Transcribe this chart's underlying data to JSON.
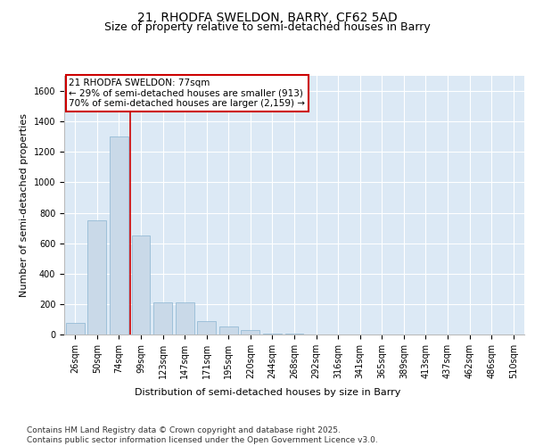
{
  "title_line1": "21, RHODFA SWELDON, BARRY, CF62 5AD",
  "title_line2": "Size of property relative to semi-detached houses in Barry",
  "xlabel": "Distribution of semi-detached houses by size in Barry",
  "ylabel": "Number of semi-detached properties",
  "categories": [
    "26sqm",
    "50sqm",
    "74sqm",
    "99sqm",
    "123sqm",
    "147sqm",
    "171sqm",
    "195sqm",
    "220sqm",
    "244sqm",
    "268sqm",
    "292sqm",
    "316sqm",
    "341sqm",
    "365sqm",
    "389sqm",
    "413sqm",
    "437sqm",
    "462sqm",
    "486sqm",
    "510sqm"
  ],
  "values": [
    75,
    750,
    1300,
    650,
    210,
    210,
    90,
    55,
    30,
    8,
    3,
    2,
    1,
    1,
    0,
    0,
    0,
    0,
    0,
    0,
    0
  ],
  "bar_color": "#c9d9e8",
  "bar_edge_color": "#8ab4d0",
  "vline_color": "#cc0000",
  "vline_xindex": 2.5,
  "annotation_box_text": "21 RHODFA SWELDON: 77sqm\n← 29% of semi-detached houses are smaller (913)\n70% of semi-detached houses are larger (2,159) →",
  "annotation_box_edgecolor": "#cc0000",
  "annotation_box_facecolor": "white",
  "ylim": [
    0,
    1700
  ],
  "yticks": [
    0,
    200,
    400,
    600,
    800,
    1000,
    1200,
    1400,
    1600
  ],
  "plot_bg_color": "#dce9f5",
  "grid_color": "white",
  "footer_line1": "Contains HM Land Registry data © Crown copyright and database right 2025.",
  "footer_line2": "Contains public sector information licensed under the Open Government Licence v3.0.",
  "title_fontsize": 10,
  "subtitle_fontsize": 9,
  "axis_label_fontsize": 8,
  "tick_fontsize": 7,
  "footer_fontsize": 6.5,
  "annotation_fontsize": 7.5
}
